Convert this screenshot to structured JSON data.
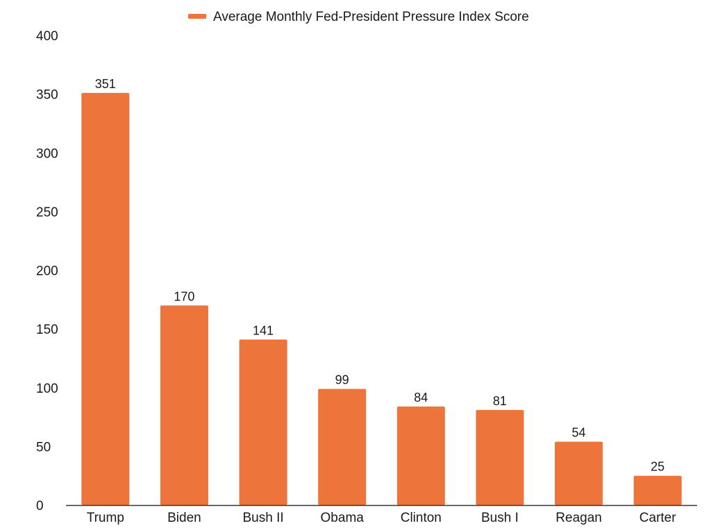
{
  "chart_data": {
    "type": "bar",
    "categories": [
      "Trump",
      "Biden",
      "Bush II",
      "Obama",
      "Clinton",
      "Bush I",
      "Reagan",
      "Carter"
    ],
    "series": [
      {
        "name": "Average Monthly Fed-President Pressure Index Score",
        "values": [
          351,
          170,
          141,
          99,
          84,
          81,
          54,
          25
        ]
      }
    ],
    "value_labels": [
      "351",
      "170",
      "141",
      "99",
      "84",
      "81",
      "54",
      "25"
    ],
    "y_ticks": [
      "0",
      "50",
      "100",
      "150",
      "200",
      "250",
      "300",
      "350",
      "400"
    ],
    "ylim": [
      0,
      400
    ],
    "title": "",
    "xlabel": "",
    "ylabel": "",
    "grid": false,
    "legend_position": "top-center",
    "bar_color": "#ED743A",
    "axis_color": "#333333"
  }
}
